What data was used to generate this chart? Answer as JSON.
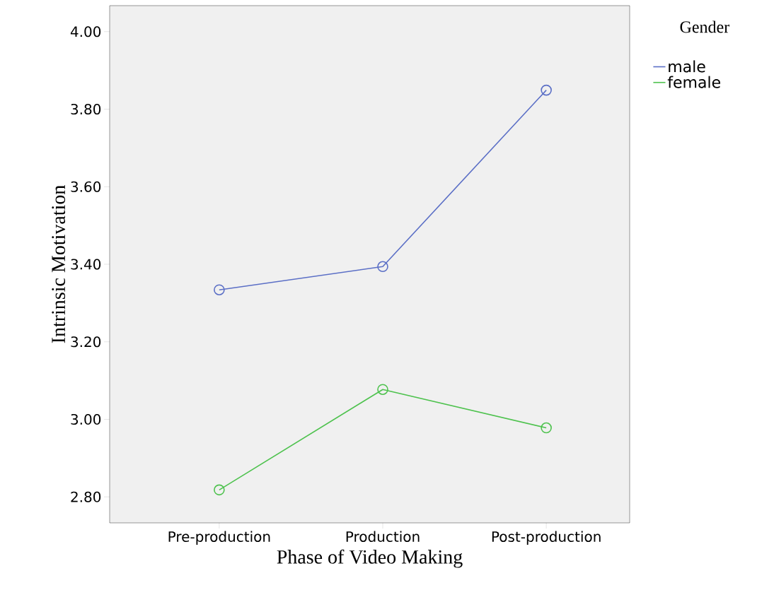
{
  "chart_data": {
    "type": "line",
    "xlabel": "Phase of Video Making",
    "ylabel": "Intrinsic Motivation",
    "legend_title": "Gender",
    "categories": [
      "Pre-production",
      "Production",
      "Post-production"
    ],
    "series": [
      {
        "name": "male",
        "color": "#5b6fc6",
        "values": [
          3.334,
          3.394,
          3.849
        ]
      },
      {
        "name": "female",
        "color": "#4ec24e",
        "values": [
          2.818,
          3.077,
          2.978
        ]
      }
    ],
    "ylim": [
      2.733,
      4.067
    ],
    "yticks": [
      {
        "value": 2.8,
        "label": "2.80"
      },
      {
        "value": 3.0,
        "label": "3.00"
      },
      {
        "value": 3.2,
        "label": "3.20"
      },
      {
        "value": 3.4,
        "label": "3.40"
      },
      {
        "value": 3.6,
        "label": "3.60"
      },
      {
        "value": 3.8,
        "label": "3.80"
      },
      {
        "value": 4.0,
        "label": "4.00"
      }
    ],
    "legend": "top right",
    "marker": "circle",
    "line_style": "solid"
  }
}
